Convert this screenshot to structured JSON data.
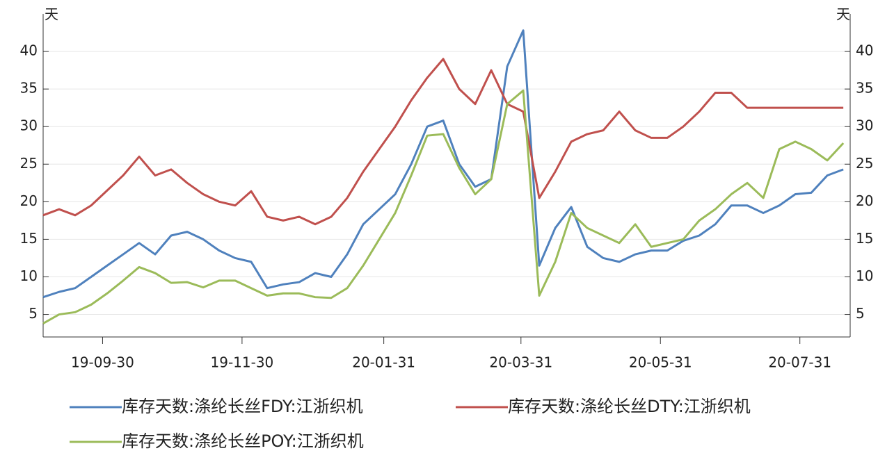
{
  "chart_data": {
    "type": "line",
    "y_unit": "天",
    "y2_unit": "天",
    "x": [
      "19-09-04",
      "19-09-11",
      "19-09-18",
      "19-09-25",
      "19-10-02",
      "19-10-09",
      "19-10-16",
      "19-10-23",
      "19-10-30",
      "19-11-06",
      "19-11-13",
      "19-11-20",
      "19-11-27",
      "19-12-04",
      "19-12-11",
      "19-12-18",
      "19-12-25",
      "20-01-01",
      "20-01-08",
      "20-01-15",
      "20-01-22",
      "20-01-29",
      "20-02-05",
      "20-02-12",
      "20-02-19",
      "20-02-26",
      "20-03-04",
      "20-03-11",
      "20-03-18",
      "20-03-25",
      "20-04-01",
      "20-04-08",
      "20-04-15",
      "20-04-22",
      "20-04-29",
      "20-05-06",
      "20-05-13",
      "20-05-20",
      "20-05-27",
      "20-06-03",
      "20-06-10",
      "20-06-17",
      "20-06-24",
      "20-07-01",
      "20-07-08",
      "20-07-15",
      "20-07-22",
      "20-07-29",
      "20-08-05",
      "20-08-12",
      "20-08-19"
    ],
    "series": [
      {
        "name": "库存天数:涤纶长丝FDY:江浙织机",
        "color": "#4f81bd",
        "values": [
          7.3,
          8,
          8.5,
          10,
          11.5,
          13,
          14.5,
          13,
          15.5,
          16,
          15,
          13.5,
          12.5,
          12,
          8.5,
          9,
          9.3,
          10.5,
          10,
          13,
          17,
          19,
          21,
          25,
          30,
          30.8,
          25,
          22,
          23,
          38,
          42.8,
          11.5,
          16.5,
          19.3,
          14,
          12.5,
          12,
          13,
          13.5,
          13.5,
          14.8,
          15.5,
          17,
          19.5,
          19.5,
          18.5,
          19.5,
          21,
          21.2,
          23.5,
          24.3
        ]
      },
      {
        "name": "库存天数:涤纶长丝DTY:江浙织机",
        "color": "#c0504d",
        "values": [
          18.2,
          19,
          18.2,
          19.5,
          21.5,
          23.5,
          26,
          23.5,
          24.3,
          22.5,
          21,
          20,
          19.5,
          21.4,
          18,
          17.5,
          18,
          17,
          18,
          20.5,
          24,
          27,
          30,
          33.5,
          36.5,
          39,
          35,
          33,
          37.5,
          33,
          32,
          20.5,
          24,
          28,
          29,
          29.5,
          32,
          29.5,
          28.5,
          28.5,
          30,
          32,
          34.5,
          34.5,
          32.5,
          32.5,
          32.5,
          32.5,
          32.5,
          32.5,
          32.5
        ]
      },
      {
        "name": "库存天数:涤纶长丝POY:江浙织机",
        "color": "#9bbb59",
        "values": [
          3.8,
          5,
          5.3,
          6.3,
          7.8,
          9.5,
          11.3,
          10.5,
          9.2,
          9.3,
          8.6,
          9.5,
          9.5,
          8.5,
          7.5,
          7.8,
          7.8,
          7.3,
          7.2,
          8.5,
          11.5,
          15,
          18.5,
          23.5,
          28.8,
          29,
          24.5,
          21,
          23,
          33,
          34.8,
          7.5,
          12,
          18.5,
          16.5,
          15.5,
          14.5,
          17,
          14,
          14.5,
          15,
          17.5,
          19,
          21,
          22.5,
          20.5,
          27,
          28,
          27,
          25.5,
          27.8
        ]
      }
    ],
    "xlim": [
      "19-09-04",
      "20-08-22"
    ],
    "xticks": [
      "19-09-30",
      "19-11-30",
      "20-01-31",
      "20-03-31",
      "20-05-31",
      "20-07-31"
    ],
    "ylim": [
      2,
      45
    ],
    "yticks": [
      5,
      10,
      15,
      20,
      25,
      30,
      35,
      40
    ],
    "y2lim": [
      2,
      45
    ],
    "y2ticks": [
      5,
      10,
      15,
      20,
      25,
      30,
      35,
      40
    ],
    "grid": true,
    "legend": "bottom"
  }
}
